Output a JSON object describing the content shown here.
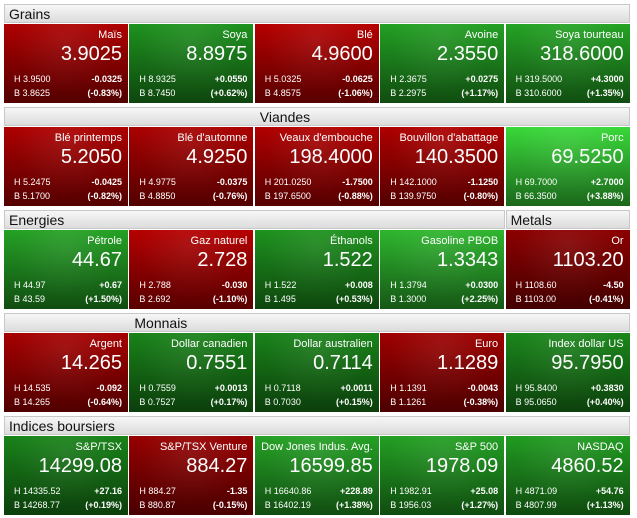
{
  "rows": [
    {
      "groups": [
        {
          "title": "Grains",
          "tiles": [
            {
              "name": "Maïs",
              "last": "3.9025",
              "high": "H 3.9500",
              "change": "-0.0325",
              "low": "B 3.8625",
              "pct": "(-0.83%)",
              "color": "#b80000"
            },
            {
              "name": "Soya",
              "last": "8.8975",
              "high": "H 8.9325",
              "change": "+0.0550",
              "low": "B 8.7450",
              "pct": "(+0.62%)",
              "color": "#1f9a1f"
            },
            {
              "name": "Blé",
              "last": "4.9600",
              "high": "H 5.0325",
              "change": "-0.0625",
              "low": "B 4.8575",
              "pct": "(-1.06%)",
              "color": "#c00000"
            },
            {
              "name": "Avoine",
              "last": "2.3550",
              "high": "H 2.3675",
              "change": "+0.0275",
              "low": "B 2.2975",
              "pct": "(+1.17%)",
              "color": "#24a824"
            },
            {
              "name": "Soya tourteau",
              "last": "318.6000",
              "high": "H 319.5000",
              "change": "+4.3000",
              "low": "B 310.6000",
              "pct": "(+1.35%)",
              "color": "#26ac26"
            }
          ]
        }
      ]
    },
    {
      "groups": [
        {
          "title": "Viandes",
          "tiles": [
            {
              "name": "Blé printemps",
              "last": "5.2050",
              "high": "H 5.2475",
              "change": "-0.0425",
              "low": "B 5.1700",
              "pct": "(-0.82%)",
              "color": "#b80000"
            },
            {
              "name": "Blé d'automne",
              "last": "4.9250",
              "high": "H 4.9775",
              "change": "-0.0375",
              "low": "B 4.8850",
              "pct": "(-0.76%)",
              "color": "#b40000"
            },
            {
              "name": "Veaux d'embouche",
              "last": "198.4000",
              "high": "H 201.0250",
              "change": "-1.7500",
              "low": "B 197.6500",
              "pct": "(-0.88%)",
              "color": "#bb0000"
            },
            {
              "name": "Bouvillon d'abattage",
              "last": "140.3500",
              "high": "H 142.1000",
              "change": "-1.1250",
              "low": "B 139.9750",
              "pct": "(-0.80%)",
              "color": "#b80000"
            },
            {
              "name": "Porc",
              "last": "69.5250",
              "high": "H 69.7000",
              "change": "+2.7000",
              "low": "B 66.3500",
              "pct": "(+3.88%)",
              "color": "#3ce43c"
            }
          ]
        }
      ]
    },
    {
      "groups": [
        {
          "title": "Energies",
          "tiles": [
            {
              "name": "Pétrole",
              "last": "44.67",
              "high": "H 44.97",
              "change": "+0.67",
              "low": "B 43.59",
              "pct": "(+1.50%)",
              "color": "#26aa26"
            },
            {
              "name": "Gaz naturel",
              "last": "2.728",
              "high": "H 2.788",
              "change": "-0.030",
              "low": "B 2.692",
              "pct": "(-1.10%)",
              "color": "#c00000"
            },
            {
              "name": "Éthanols",
              "last": "1.522",
              "high": "H 1.522",
              "change": "+0.008",
              "low": "B 1.495",
              "pct": "(+0.53%)",
              "color": "#1f9a1f"
            },
            {
              "name": "Gasoline PBOB",
              "last": "1.3343",
              "high": "H 1.3794",
              "change": "+0.0300",
              "low": "B 1.3000",
              "pct": "(+2.25%)",
              "color": "#30c030"
            }
          ]
        },
        {
          "title": "Metals",
          "tiles": [
            {
              "name": "Or",
              "last": "1103.20",
              "high": "H 1108.60",
              "change": "-4.50",
              "low": "B 1103.00",
              "pct": "(-0.41%)",
              "color": "#940000"
            }
          ]
        }
      ]
    },
    {
      "groups": [
        {
          "title": "Monnais",
          "tiles": [
            {
              "name": "Argent",
              "last": "14.265",
              "high": "H 14.535",
              "change": "-0.092",
              "low": "B 14.265",
              "pct": "(-0.64%)",
              "color": "#b00000"
            },
            {
              "name": "Dollar canadien",
              "last": "0.7551",
              "high": "H 0.7559",
              "change": "+0.0013",
              "low": "B 0.7527",
              "pct": "(+0.17%)",
              "color": "#1a8a1a"
            },
            {
              "name": "Dollar australien",
              "last": "0.7114",
              "high": "H 0.7118",
              "change": "+0.0011",
              "low": "B 0.7030",
              "pct": "(+0.15%)",
              "color": "#1a8a1a"
            },
            {
              "name": "Euro",
              "last": "1.1289",
              "high": "H 1.1391",
              "change": "-0.0043",
              "low": "B 1.1261",
              "pct": "(-0.38%)",
              "color": "#a80000"
            },
            {
              "name": "Index dollar US",
              "last": "95.7950",
              "high": "H 95.8400",
              "change": "+0.3830",
              "low": "B 95.0650",
              "pct": "(+0.40%)",
              "color": "#1c8e1c"
            }
          ]
        }
      ]
    },
    {
      "groups": [
        {
          "title": "Indices boursiers",
          "tiles": [
            {
              "name": "S&P/TSX",
              "last": "14299.08",
              "high": "H 14335.52",
              "change": "+27.16",
              "low": "B 14268.77",
              "pct": "(+0.19%)",
              "color": "#1a8a1a"
            },
            {
              "name": "S&P/TSX Venture",
              "last": "884.27",
              "high": "H 884.27",
              "change": "-1.35",
              "low": "B 880.87",
              "pct": "(-0.15%)",
              "color": "#a00000"
            },
            {
              "name": "Dow Jones Indus. Avg.",
              "last": "16599.85",
              "high": "H 16640.86",
              "change": "+228.89",
              "low": "B 16402.19",
              "pct": "(+1.38%)",
              "color": "#26aa26"
            },
            {
              "name": "S&P 500",
              "last": "1978.09",
              "high": "H 1982.91",
              "change": "+25.08",
              "low": "B 1956.03",
              "pct": "(+1.27%)",
              "color": "#24a824"
            },
            {
              "name": "NASDAQ",
              "last": "4860.52",
              "high": "H 4871.09",
              "change": "+54.76",
              "low": "B 4807.99",
              "pct": "(+1.13%)",
              "color": "#22a422"
            }
          ]
        }
      ]
    }
  ]
}
